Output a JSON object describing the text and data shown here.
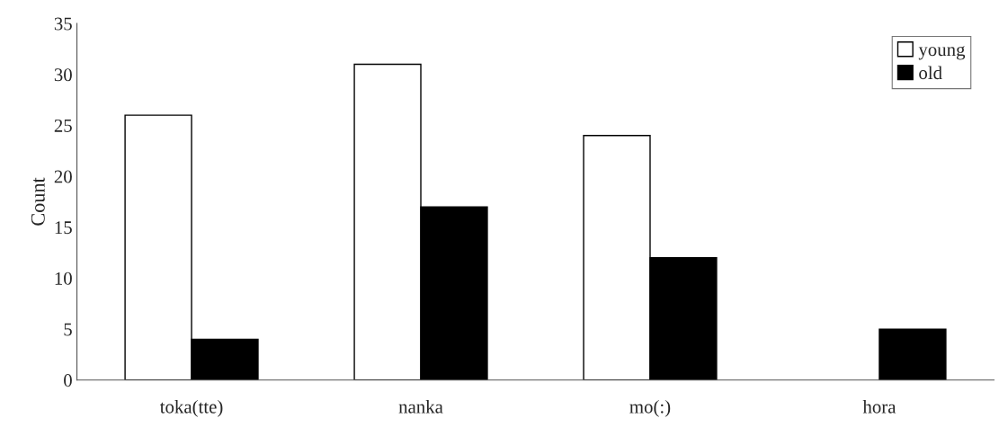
{
  "chart_data": {
    "type": "bar",
    "ylabel": "Count",
    "categories": [
      "toka(tte)",
      "nanka",
      "mo(:)",
      "hora"
    ],
    "series": [
      {
        "name": "young",
        "color": "#ffffff",
        "values": [
          26,
          31,
          24,
          0
        ]
      },
      {
        "name": "old",
        "color": "#000000",
        "values": [
          4,
          17,
          12,
          5
        ]
      }
    ],
    "ylim": [
      0,
      35
    ],
    "yticks": [
      0,
      5,
      10,
      15,
      20,
      25,
      30,
      35
    ],
    "grid": false,
    "legend": "top right"
  }
}
